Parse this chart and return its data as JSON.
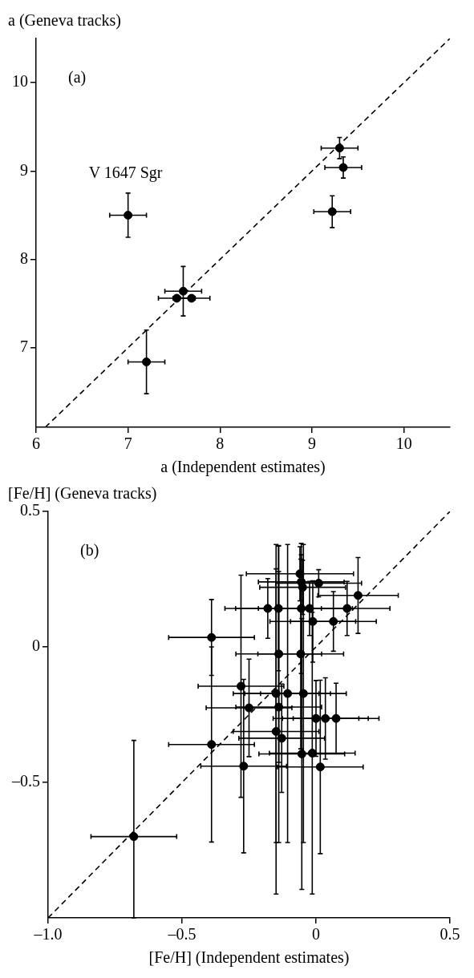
{
  "chart_data": [
    {
      "type": "scatter",
      "ylabel": "a (Geneva tracks)",
      "xlabel": "a (Independent estimates)",
      "xlim": [
        6,
        10.5
      ],
      "ylim": [
        6.1,
        10.5
      ],
      "xticks": [
        6,
        7,
        8,
        9,
        10
      ],
      "yticks": [
        7,
        8,
        9,
        10
      ],
      "annotations": [
        "(a)",
        {
          "text": "V 1647 Sgr",
          "x": 7,
          "y": 8.5
        }
      ],
      "series": [
        {
          "color": "#000000",
          "marker": "circle",
          "x": [
            7.0,
            7.6,
            7.53,
            7.69,
            9.3,
            9.34,
            9.22,
            7.2
          ],
          "values": [
            8.5,
            7.64,
            7.56,
            7.56,
            9.26,
            9.04,
            8.54,
            6.84
          ],
          "errors": [
            0.25,
            0.28,
            null,
            null,
            0.12,
            0.12,
            0.18,
            0.36
          ],
          "xerrors": [
            0.2,
            0.2,
            0.2,
            0.2,
            0.2,
            0.2,
            0.2,
            0.2
          ]
        },
        {
          "type": "line",
          "color": "#000000",
          "marker": "none",
          "line_style": "dashed",
          "x": [
            6.1,
            10.5
          ],
          "values": [
            6.1,
            10.5
          ]
        }
      ]
    },
    {
      "type": "scatter",
      "ylabel": "[Fe/H] (Geneva tracks)",
      "xlabel": "[Fe/H] (Independent estimates)",
      "xlim": [
        -1.0,
        0.5
      ],
      "ylim": [
        -1.0,
        0.5
      ],
      "xticks": [
        {
          "value": -1.0,
          "label": "–1.0"
        },
        {
          "value": -0.5,
          "label": "–0.5"
        },
        0,
        0.5
      ],
      "yticks": [
        {
          "value": -0.5,
          "label": "–0.5"
        },
        0,
        0.5
      ],
      "annotations": [
        "(b)"
      ],
      "series": [
        {
          "color": "#000000",
          "marker": "circle",
          "x": [
            -0.39,
            -0.39,
            -0.28,
            -0.25,
            -0.27,
            -0.68,
            -0.18,
            -0.14,
            -0.06,
            -0.055,
            -0.05,
            0.01,
            -0.055,
            -0.024,
            -0.012,
            0.065,
            0.116,
            0.157,
            -0.139,
            -0.057,
            -0.149,
            -0.106,
            -0.047,
            -0.139,
            0.0,
            0.035,
            0.075,
            -0.149,
            -0.128,
            -0.053,
            -0.014,
            0.016
          ],
          "values": [
            0.035,
            -0.36,
            -0.145,
            -0.225,
            -0.44,
            -0.7,
            0.142,
            0.142,
            0.27,
            0.24,
            0.22,
            0.235,
            0.142,
            0.142,
            0.094,
            0.094,
            0.142,
            0.19,
            -0.026,
            -0.026,
            -0.172,
            -0.172,
            -0.172,
            -0.222,
            -0.264,
            -0.264,
            -0.264,
            -0.312,
            -0.337,
            -0.395,
            -0.392,
            -0.443
          ],
          "errors": [
            0.14,
            0.36,
            0.41,
            0.18,
            0.32,
            [
              -1.0,
              -0.345
            ],
            0.11,
            0.23,
            0.1,
            0.1,
            0.1,
            0.05,
            0.24,
            0.1,
            0.15,
            0.11,
            0.1,
            0.14,
            0.4,
            0.35,
            0.55,
            0.55,
            0.55,
            0.5,
            0.14,
            0.15,
            0.13,
            0.6,
            0.2,
            0.5,
            0.52,
            0.32
          ],
          "xerrors": [
            0.16,
            0.16,
            0.16,
            0.16,
            0.16,
            0.16,
            0.16,
            0.16,
            0.2,
            0.16,
            0.16,
            0.16,
            0.16,
            0.16,
            0.16,
            0.16,
            0.16,
            0.15,
            0.16,
            0.16,
            0.16,
            0.16,
            0.16,
            0.16,
            0.16,
            0.16,
            0.16,
            0.16,
            0.16,
            0.16,
            0.16,
            0.16
          ]
        },
        {
          "type": "line",
          "color": "#000000",
          "marker": "none",
          "line_style": "dashed",
          "x": [
            -1.0,
            0.5
          ],
          "values": [
            -1.0,
            0.5
          ]
        }
      ]
    }
  ]
}
